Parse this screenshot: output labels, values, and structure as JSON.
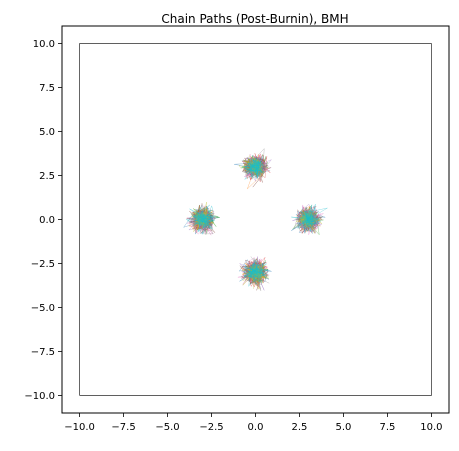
{
  "figure": {
    "title": "Chain Paths (Post-Burnin), BMH"
  },
  "chart_data": {
    "type": "line",
    "title": "Chain Paths (Post-Burnin), BMH",
    "xlabel": "",
    "ylabel": "",
    "xlim": [
      -11.0,
      11.0
    ],
    "ylim": [
      -11.0,
      11.0
    ],
    "xticks": [
      -10.0,
      -7.5,
      -5.0,
      -2.5,
      0.0,
      2.5,
      5.0,
      7.5,
      10.0
    ],
    "yticks": [
      -10.0,
      -7.5,
      -5.0,
      -2.5,
      0.0,
      2.5,
      5.0,
      7.5,
      10.0
    ],
    "xtick_labels": [
      "−10.0",
      "−7.5",
      "−5.0",
      "−2.5",
      "0.0",
      "2.5",
      "5.0",
      "7.5",
      "10.0"
    ],
    "ytick_labels": [
      "−10.0",
      "−7.5",
      "−5.0",
      "−2.5",
      "0.0",
      "2.5",
      "5.0",
      "7.5",
      "10.0"
    ],
    "grid": false,
    "legend": "none",
    "bounding_square": {
      "x": [
        -10,
        10,
        10,
        -10,
        -10
      ],
      "y": [
        -10,
        -10,
        10,
        10,
        -10
      ],
      "color": "#000000"
    },
    "modes": [
      {
        "center": [
          0,
          3
        ],
        "spread": 0.3
      },
      {
        "center": [
          3,
          0
        ],
        "spread": 0.3
      },
      {
        "center": [
          0,
          -3
        ],
        "spread": 0.3
      },
      {
        "center": [
          -3,
          0
        ],
        "spread": 0.3
      }
    ],
    "series_colors": [
      "#1f77b4",
      "#ff7f0e",
      "#2ca02c",
      "#d62728",
      "#9467bd",
      "#8c564b",
      "#e377c2",
      "#7f7f7f",
      "#bcbd22",
      "#17becf"
    ],
    "points_per_series_per_mode": 120
  }
}
